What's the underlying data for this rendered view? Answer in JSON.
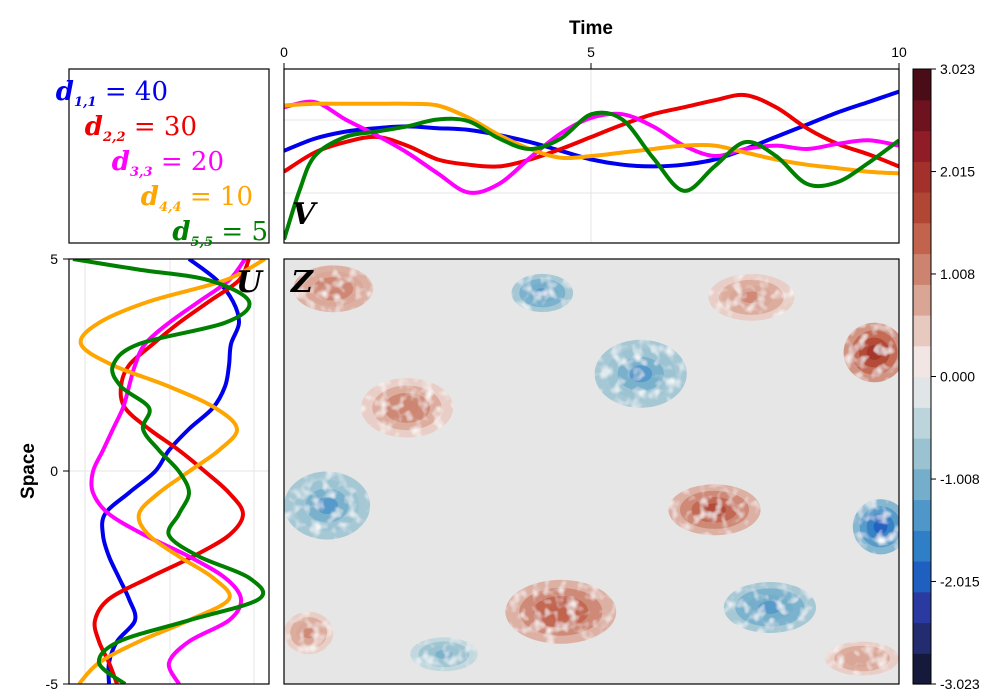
{
  "chart_data": {
    "type": "line",
    "x_axis": {
      "title": "Time",
      "ticks": [
        "0",
        "5",
        "10"
      ],
      "range": [
        0,
        10
      ]
    },
    "y_axis": {
      "title": "Space",
      "ticks": [
        "5",
        "0",
        "-5"
      ],
      "range": [
        -5,
        5
      ]
    },
    "legend": {
      "entries": [
        {
          "var": "d",
          "sub": "1,1",
          "value": "40",
          "color": "#0000ee"
        },
        {
          "var": "d",
          "sub": "2,2",
          "value": "30",
          "color": "#ee0000"
        },
        {
          "var": "d",
          "sub": "3,3",
          "value": "20",
          "color": "#ff00ff"
        },
        {
          "var": "d",
          "sub": "4,4",
          "value": "10",
          "color": "#ffa500"
        },
        {
          "var": "d",
          "sub": "5,5",
          "value": "5",
          "color": "#008000"
        }
      ]
    },
    "panel_labels": {
      "time_panel": "V",
      "space_panel": "U",
      "field_panel": "Z"
    },
    "colorbar": {
      "range": [
        -3.023,
        3.023
      ],
      "ticks": [
        "3.023",
        "2.015",
        "1.008",
        "0.000",
        "-1.008",
        "-2.015",
        "-3.023"
      ],
      "colors": [
        "#151a3d",
        "#232c6e",
        "#2b3aa0",
        "#1e5fc0",
        "#2f7fc6",
        "#4f97c9",
        "#74aecb",
        "#9ac2d1",
        "#bcd5dc",
        "#e0e6e8",
        "#f2e6e4",
        "#e8c9c0",
        "#d9a696",
        "#cc8470",
        "#c2644d",
        "#b24634",
        "#a3302a",
        "#8f1c27",
        "#6e1220",
        "#4a0d18"
      ]
    },
    "field_blobs": [
      {
        "t": 0.8,
        "s": 4.3,
        "w": 1.3,
        "h": 1.1,
        "a": 1.2
      },
      {
        "t": 2.0,
        "s": 1.5,
        "w": 1.5,
        "h": 1.4,
        "a": 1.1
      },
      {
        "t": 4.2,
        "s": 4.2,
        "w": 1.0,
        "h": 0.9,
        "a": -1.4
      },
      {
        "t": 5.8,
        "s": 2.3,
        "w": 1.5,
        "h": 1.6,
        "a": -1.3
      },
      {
        "t": 7.6,
        "s": 4.1,
        "w": 1.4,
        "h": 1.1,
        "a": 1.0
      },
      {
        "t": 9.6,
        "s": 2.8,
        "w": 1.0,
        "h": 1.4,
        "a": 2.0
      },
      {
        "t": 0.7,
        "s": -0.8,
        "w": 1.4,
        "h": 1.6,
        "a": -1.3
      },
      {
        "t": 7.0,
        "s": -0.9,
        "w": 1.5,
        "h": 1.2,
        "a": 1.7
      },
      {
        "t": 9.7,
        "s": -1.3,
        "w": 0.9,
        "h": 1.3,
        "a": -2.0
      },
      {
        "t": 4.5,
        "s": -3.3,
        "w": 1.8,
        "h": 1.5,
        "a": 1.5
      },
      {
        "t": 0.4,
        "s": -3.8,
        "w": 0.8,
        "h": 1.0,
        "a": 1.0
      },
      {
        "t": 7.9,
        "s": -3.2,
        "w": 1.5,
        "h": 1.2,
        "a": -1.4
      },
      {
        "t": 2.6,
        "s": -4.3,
        "w": 1.1,
        "h": 0.8,
        "a": -1.0
      },
      {
        "t": 9.4,
        "s": -4.4,
        "w": 1.2,
        "h": 0.8,
        "a": 0.9
      }
    ],
    "time_series": [
      {
        "name": "d1,1",
        "color": "#0000ee",
        "x": [
          0,
          0.5,
          1,
          1.5,
          2,
          2.5,
          3,
          3.5,
          4,
          4.5,
          5,
          5.5,
          6,
          6.5,
          7,
          7.5,
          8,
          8.5,
          9,
          9.5,
          10
        ],
        "y": [
          0.53,
          0.6,
          0.64,
          0.66,
          0.67,
          0.66,
          0.65,
          0.62,
          0.58,
          0.53,
          0.48,
          0.45,
          0.44,
          0.45,
          0.48,
          0.54,
          0.61,
          0.68,
          0.75,
          0.81,
          0.87
        ]
      },
      {
        "name": "d2,2",
        "color": "#ee0000",
        "x": [
          0,
          0.5,
          1,
          1.5,
          2,
          2.5,
          3,
          3.5,
          4,
          4.5,
          5,
          5.5,
          6,
          6.5,
          7,
          7.5,
          8,
          8.5,
          9,
          9.5,
          10
        ],
        "y": [
          0.41,
          0.52,
          0.58,
          0.61,
          0.56,
          0.48,
          0.45,
          0.44,
          0.48,
          0.54,
          0.61,
          0.68,
          0.74,
          0.78,
          0.82,
          0.85,
          0.78,
          0.66,
          0.57,
          0.51,
          0.44
        ]
      },
      {
        "name": "d3,3",
        "color": "#ff00ff",
        "x": [
          0,
          0.5,
          1,
          1.5,
          2,
          2.5,
          3,
          3.5,
          4,
          4.5,
          5,
          5.5,
          6,
          6.5,
          7,
          7.5,
          8,
          8.5,
          9,
          9.5,
          10
        ],
        "y": [
          0.78,
          0.81,
          0.71,
          0.62,
          0.52,
          0.4,
          0.29,
          0.34,
          0.49,
          0.63,
          0.72,
          0.74,
          0.67,
          0.56,
          0.5,
          0.54,
          0.56,
          0.54,
          0.57,
          0.59,
          0.56
        ]
      },
      {
        "name": "d4,4",
        "color": "#ffa500",
        "x": [
          0,
          0.5,
          1,
          1.5,
          2,
          2.5,
          3,
          3.5,
          4,
          4.5,
          5,
          5.5,
          6,
          6.5,
          7,
          7.5,
          8,
          8.5,
          9,
          9.5,
          10
        ],
        "y": [
          0.79,
          0.8,
          0.8,
          0.8,
          0.8,
          0.79,
          0.72,
          0.62,
          0.54,
          0.49,
          0.5,
          0.52,
          0.54,
          0.56,
          0.56,
          0.52,
          0.48,
          0.45,
          0.43,
          0.41,
          0.4
        ]
      },
      {
        "name": "d5,5",
        "color": "#008000",
        "x": [
          0,
          0.25,
          0.5,
          1,
          1.5,
          2,
          2.5,
          3,
          3.5,
          4,
          4.5,
          5,
          5.5,
          6,
          6.5,
          7,
          7.5,
          8,
          8.5,
          9,
          9.5,
          10
        ],
        "y": [
          0.02,
          0.3,
          0.5,
          0.61,
          0.64,
          0.67,
          0.71,
          0.7,
          0.6,
          0.54,
          0.6,
          0.74,
          0.71,
          0.49,
          0.3,
          0.44,
          0.58,
          0.5,
          0.34,
          0.35,
          0.46,
          0.59
        ]
      }
    ],
    "space_series": [
      {
        "name": "d1,1",
        "color": "#0000ee",
        "s": [
          5,
          4.5,
          4,
          3.5,
          3,
          2.5,
          2,
          1.5,
          1,
          0.5,
          0,
          -0.5,
          -1,
          -1.5,
          -2,
          -2.5,
          -3,
          -3.5,
          -4,
          -4.5,
          -5
        ],
        "v": [
          0.6,
          0.74,
          0.82,
          0.85,
          0.81,
          0.8,
          0.78,
          0.72,
          0.6,
          0.5,
          0.43,
          0.3,
          0.18,
          0.17,
          0.2,
          0.25,
          0.3,
          0.33,
          0.24,
          0.2,
          0.2
        ]
      },
      {
        "name": "d2,2",
        "color": "#ee0000",
        "s": [
          5,
          4.5,
          4,
          3.5,
          3,
          2.5,
          2,
          1.5,
          1,
          0.5,
          0,
          -0.5,
          -1,
          -1.5,
          -2,
          -2.5,
          -3,
          -3.5,
          -4,
          -4.5,
          -5
        ],
        "v": [
          0.9,
          0.85,
          0.7,
          0.55,
          0.42,
          0.3,
          0.26,
          0.28,
          0.4,
          0.55,
          0.68,
          0.8,
          0.87,
          0.8,
          0.62,
          0.4,
          0.2,
          0.13,
          0.15,
          0.2,
          0.24
        ]
      },
      {
        "name": "d3,3",
        "color": "#ff00ff",
        "s": [
          5,
          4.5,
          4,
          3.5,
          3,
          2.5,
          2,
          1.5,
          1,
          0.5,
          0,
          -0.5,
          -1,
          -1.5,
          -2,
          -2.5,
          -3,
          -3.5,
          -4,
          -4.5,
          -5
        ],
        "v": [
          0.88,
          0.8,
          0.65,
          0.5,
          0.38,
          0.33,
          0.3,
          0.27,
          0.22,
          0.17,
          0.12,
          0.12,
          0.2,
          0.38,
          0.6,
          0.78,
          0.86,
          0.8,
          0.6,
          0.5,
          0.55
        ]
      },
      {
        "name": "d4,4",
        "color": "#ffa500",
        "s": [
          5,
          4.5,
          4,
          3.5,
          3,
          2.5,
          2,
          1.5,
          1,
          0.5,
          0,
          -0.5,
          -1,
          -1.5,
          -2,
          -2.5,
          -3,
          -3.5,
          -4,
          -4.5,
          -5
        ],
        "v": [
          0.98,
          0.78,
          0.4,
          0.15,
          0.06,
          0.22,
          0.5,
          0.73,
          0.84,
          0.75,
          0.6,
          0.45,
          0.35,
          0.4,
          0.55,
          0.72,
          0.8,
          0.6,
          0.35,
          0.15,
          0.05
        ]
      },
      {
        "name": "d5,5",
        "color": "#008000",
        "s": [
          5,
          4.75,
          4.5,
          4,
          3.5,
          3,
          2.5,
          2,
          1.5,
          1,
          0.5,
          0,
          -0.5,
          -1,
          -1.5,
          -2,
          -2.5,
          -3,
          -3.5,
          -4,
          -4.5,
          -5
        ],
        "v": [
          0.02,
          0.35,
          0.7,
          0.9,
          0.78,
          0.35,
          0.22,
          0.26,
          0.4,
          0.37,
          0.45,
          0.55,
          0.6,
          0.55,
          0.5,
          0.65,
          0.9,
          0.95,
          0.6,
          0.25,
          0.15,
          0.28
        ]
      }
    ]
  }
}
